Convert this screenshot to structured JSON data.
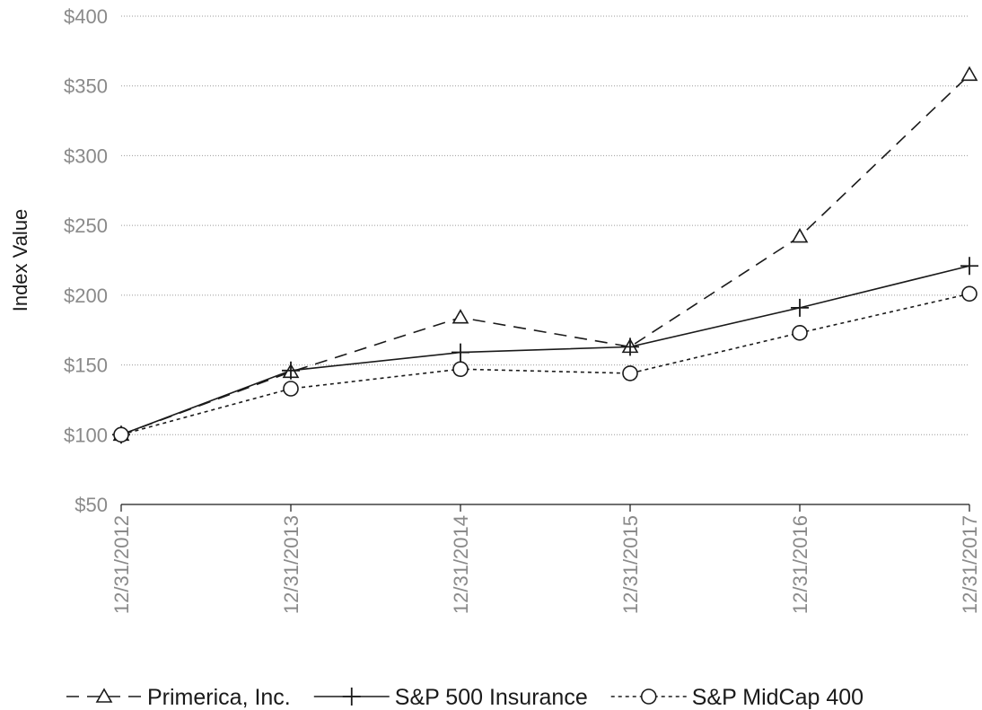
{
  "chart_data": {
    "type": "line",
    "title": "",
    "xlabel": "",
    "ylabel": "Index Value",
    "categories": [
      "12/31/2012",
      "12/31/2013",
      "12/31/2014",
      "12/31/2015",
      "12/31/2016",
      "12/31/2017"
    ],
    "y_ticks": [
      50,
      100,
      150,
      200,
      250,
      300,
      350,
      400
    ],
    "y_tick_labels": [
      "$50",
      "$100",
      "$150",
      "$200",
      "$250",
      "$300",
      "$350",
      "$400"
    ],
    "ylim": [
      50,
      400
    ],
    "grid": "horizontal-dotted",
    "legend_position": "bottom",
    "series": [
      {
        "name": "Primerica, Inc.",
        "values": [
          100,
          145,
          184,
          163,
          242,
          358
        ],
        "marker": "triangle",
        "line_style": "dashed",
        "color": "#1a1a1a"
      },
      {
        "name": "S&P 500 Insurance",
        "values": [
          100,
          146,
          159,
          163,
          191,
          221
        ],
        "marker": "plus",
        "line_style": "solid",
        "color": "#1a1a1a"
      },
      {
        "name": "S&P MidCap 400",
        "values": [
          100,
          133,
          147,
          144,
          173,
          201
        ],
        "marker": "circle",
        "line_style": "dotted",
        "color": "#1a1a1a"
      }
    ]
  }
}
